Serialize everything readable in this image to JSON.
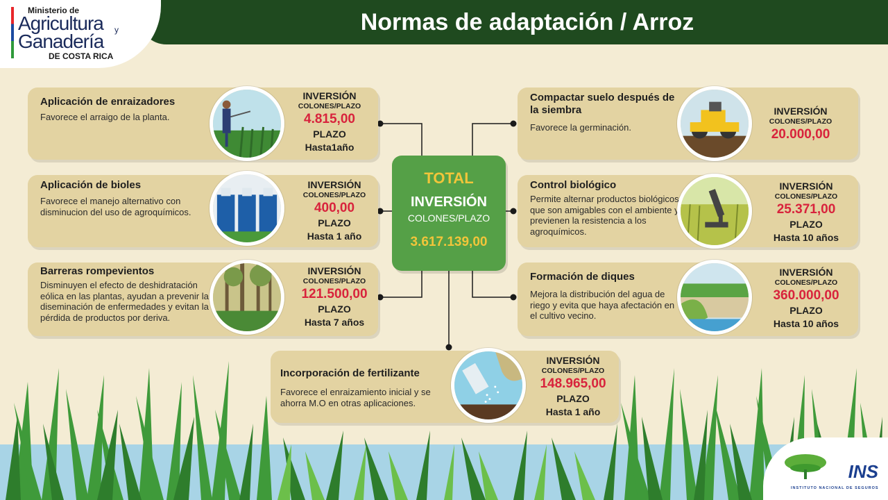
{
  "header": {
    "title": "Normas de adaptación / Arroz"
  },
  "logo": {
    "line1": "Ministerio de",
    "line2": "Agricultura",
    "line2_suffix": "y",
    "line3": "Ganadería",
    "line4": "DE COSTA RICA"
  },
  "total": {
    "title": "TOTAL",
    "label": "INVERSIÓN",
    "sub": "COLONES/PLAZO",
    "amount": "3.617.139,00"
  },
  "cards": [
    {
      "title": "Aplicación de enraizadores",
      "desc": "Favorece el arraigo de la planta.",
      "inv_label": "INVERSIÓN",
      "inv_sub": "COLONES/PLAZO",
      "amount": "4.815,00",
      "plazo_label": "PLAZO",
      "plazo": "Hasta1año",
      "image": "farmer-spraying"
    },
    {
      "title": "Aplicación de bioles",
      "desc": "Favorece el manejo alternativo con disminucion del uso de agroquímicos.",
      "inv_label": "INVERSIÓN",
      "inv_sub": "COLONES/PLAZO",
      "amount": "400,00",
      "plazo_label": "PLAZO",
      "plazo": "Hasta 1 año",
      "image": "blue-tanks"
    },
    {
      "title": "Barreras rompevientos",
      "desc": "Disminuyen el efecto de deshidratación eólica en las plantas, ayudan a prevenir la diseminación de enfermedades y evitan la pérdida de productos por deriva.",
      "inv_label": "INVERSIÓN",
      "inv_sub": "COLONES/PLAZO",
      "amount": "121.500,00",
      "plazo_label": "PLAZO",
      "plazo": "Hasta 7 años",
      "image": "forest"
    },
    {
      "title": "Compactar suelo después de la siembra",
      "desc": "Favorece la germinación.",
      "inv_label": "INVERSIÓN",
      "inv_sub": "COLONES/PLAZO",
      "amount": "20.000,00",
      "image": "road-roller"
    },
    {
      "title": "Control biológico",
      "desc": "Permite alternar productos biológicos que son amigables con el ambiente y previenen la resistencia a los agroquímicos.",
      "inv_label": "INVERSIÓN",
      "inv_sub": "COLONES/PLAZO",
      "amount": "25.371,00",
      "plazo_label": "PLAZO",
      "plazo": "Hasta 10 años",
      "image": "microscope-field"
    },
    {
      "title": "Formación de diques",
      "desc": "Mejora la distribución del agua de riego y evita que haya afectación en el cultivo vecino.",
      "inv_label": "INVERSIÓN",
      "inv_sub": "COLONES/PLAZO",
      "amount": "360.000,00",
      "plazo_label": "PLAZO",
      "plazo": "Hasta 10 años",
      "image": "dike-water"
    },
    {
      "title": "Incorporación de fertilizante",
      "desc": "Favorece el enraizamiento inicial y se ahorra M.O en otras aplicaciones.",
      "inv_label": "INVERSIÓN",
      "inv_sub": "COLONES/PLAZO",
      "amount": "148.965,00",
      "plazo_label": "PLAZO",
      "plazo": "Hasta 1 año",
      "image": "fertilizer-pour"
    }
  ],
  "footer_logo": {
    "name": "INS",
    "sub": "INSTITUTO NACIONAL DE SEGUROS"
  },
  "colors": {
    "header": "#1f4a1f",
    "card": "#e3d3a2",
    "amount": "#d8233c",
    "total_bg": "#55a047",
    "total_accent": "#f2c53a",
    "background": "#f4ecd4"
  }
}
